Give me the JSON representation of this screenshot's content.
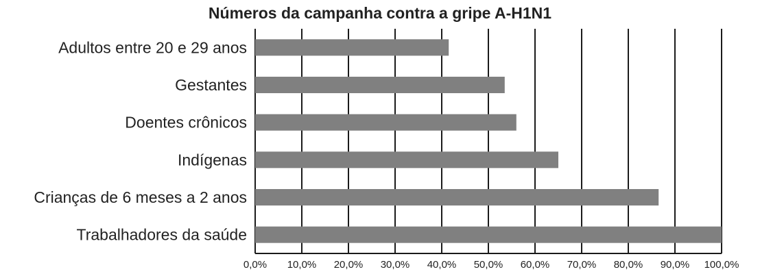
{
  "chart_data": {
    "type": "bar",
    "orientation": "horizontal",
    "title": "Números da campanha contra a gripe A-H1N1",
    "categories": [
      "Adultos entre 20 e 29 anos",
      "Gestantes",
      "Doentes crônicos",
      "Indígenas",
      "Crianças de 6 meses a 2 anos",
      "Trabalhadores da saúde"
    ],
    "values": [
      41.5,
      53.5,
      56,
      65,
      86.5,
      100
    ],
    "xlim": [
      0,
      100
    ],
    "x_ticks": [
      "0,0%",
      "10,0%",
      "20,0%",
      "30,0%",
      "40,0%",
      "50,0%",
      "60,0%",
      "70,0%",
      "80,0%",
      "90,0%",
      "100,0%"
    ],
    "grid": "vertical",
    "legend": "none",
    "bar_color": "#808080",
    "grid_color": "#1a1a1a"
  }
}
